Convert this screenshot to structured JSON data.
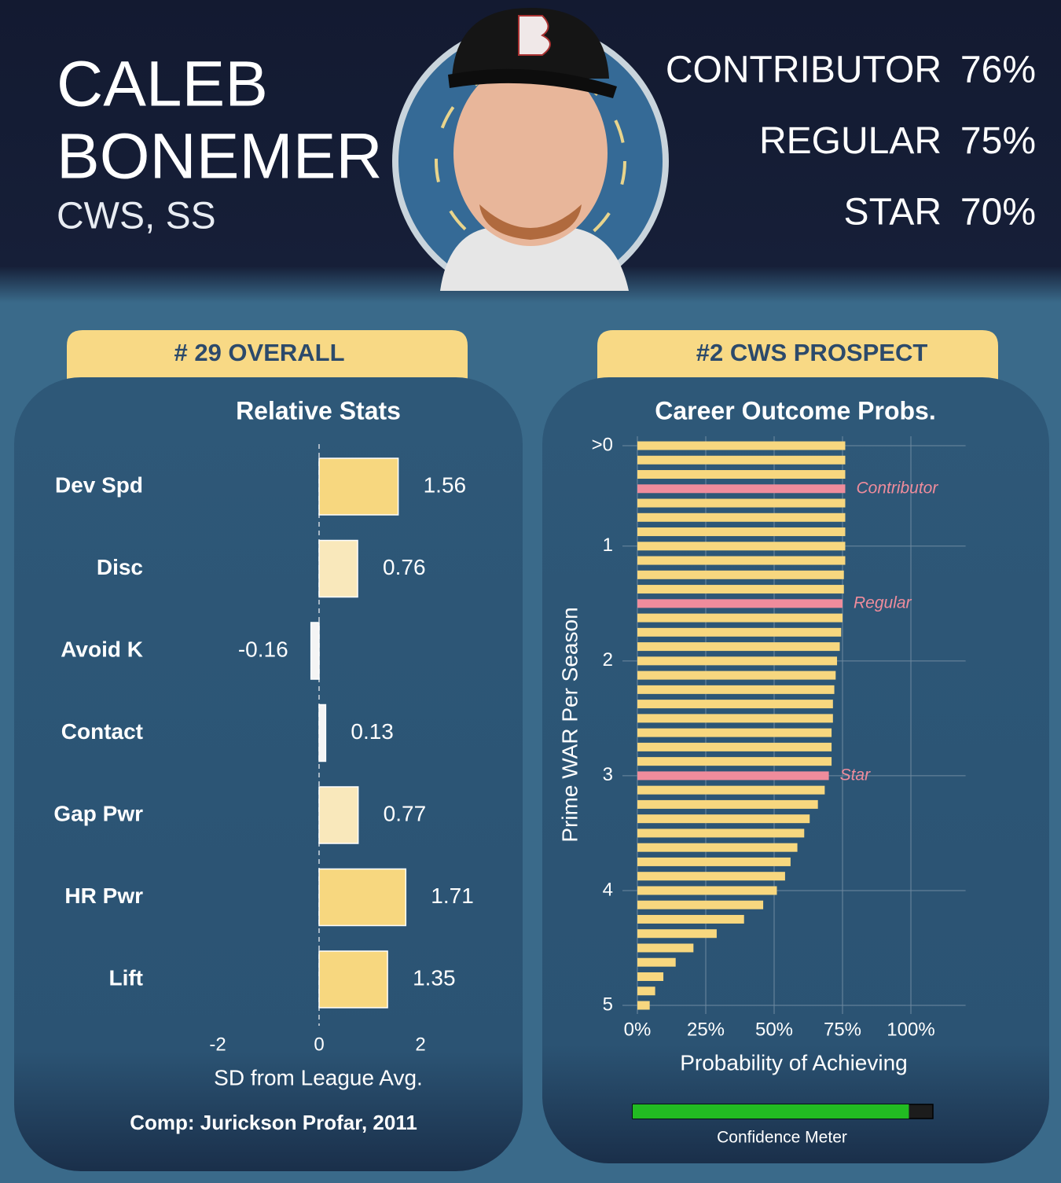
{
  "header": {
    "name_lines": [
      "CALEB",
      "BONEMER"
    ],
    "team_position": "CWS, SS",
    "outcomes": [
      {
        "label": "CONTRIBUTOR",
        "value": "76%"
      },
      {
        "label": "REGULAR",
        "value": "75%"
      },
      {
        "label": "STAR",
        "value": "70%"
      }
    ]
  },
  "panels": {
    "left": {
      "rank": "# 29 OVERALL",
      "comp": "Comp: Jurickson Profar, 2011"
    },
    "right": {
      "rank": "#2 CWS PROSPECT",
      "confidence_meter": {
        "label": "Confidence Meter",
        "value": 0.92,
        "xlim": [
          0,
          1
        ],
        "color": "#22bb22"
      }
    }
  },
  "chart_data": [
    {
      "type": "bar",
      "orientation": "horizontal",
      "title": "Relative Stats",
      "xlabel": "SD from League Avg.",
      "categories": [
        "Dev Spd",
        "Disc",
        "Avoid K",
        "Contact",
        "Gap Pwr",
        "HR Pwr",
        "Lift"
      ],
      "values": [
        1.56,
        0.76,
        -0.16,
        0.13,
        0.77,
        1.71,
        1.35
      ],
      "colors": [
        "#f7d77f",
        "#f9e8bb",
        "#f4f4f4",
        "#f4f4f4",
        "#f9e8bb",
        "#f7d77f",
        "#f7d77f"
      ],
      "xlim": [
        -2,
        2
      ],
      "xticks": [
        -2,
        0,
        2
      ]
    },
    {
      "type": "bar",
      "orientation": "horizontal",
      "title": "Career Outcome Probs.",
      "xlabel": "Probability of Achieving",
      "ylabel": "Prime WAR Per Season",
      "y": [
        0.125,
        0.25,
        0.375,
        0.5,
        0.625,
        0.75,
        0.875,
        1.0,
        1.125,
        1.25,
        1.375,
        1.5,
        1.625,
        1.75,
        1.875,
        2.0,
        2.125,
        2.25,
        2.375,
        2.5,
        2.625,
        2.75,
        2.875,
        3.0,
        3.125,
        3.25,
        3.375,
        3.5,
        3.625,
        3.75,
        3.875,
        4.0,
        4.125,
        4.25,
        4.375,
        4.5,
        4.625,
        4.75,
        4.875,
        5.0
      ],
      "values": [
        76,
        76,
        76,
        76,
        76,
        76,
        76,
        76,
        76,
        75.5,
        75.5,
        75,
        75,
        74.5,
        74,
        73,
        72.5,
        72,
        71.5,
        71.5,
        71,
        71,
        71,
        70,
        68.5,
        66,
        63,
        61,
        58.5,
        56,
        54,
        51,
        46,
        39,
        29,
        20.5,
        14,
        9.5,
        6.5,
        4.5
      ],
      "color": "#f7d77f",
      "highlight_color": "#ef8c9c",
      "annotations": [
        {
          "y": 0.5,
          "text": "Contributor"
        },
        {
          "y": 1.5,
          "text": "Regular"
        },
        {
          "y": 3.0,
          "text": "Star"
        }
      ],
      "xlim": [
        0,
        120
      ],
      "xticks": [
        {
          "value": 0,
          "label": "0%"
        },
        {
          "value": 25,
          "label": "25%"
        },
        {
          "value": 50,
          "label": "50%"
        },
        {
          "value": 75,
          "label": "75%"
        },
        {
          "value": 100,
          "label": "100%"
        }
      ],
      "ylim": [
        0.125,
        5
      ],
      "yticks": [
        {
          "value": 0.125,
          "label": ">0"
        },
        1,
        2,
        3,
        4,
        5
      ],
      "grid": true
    }
  ]
}
